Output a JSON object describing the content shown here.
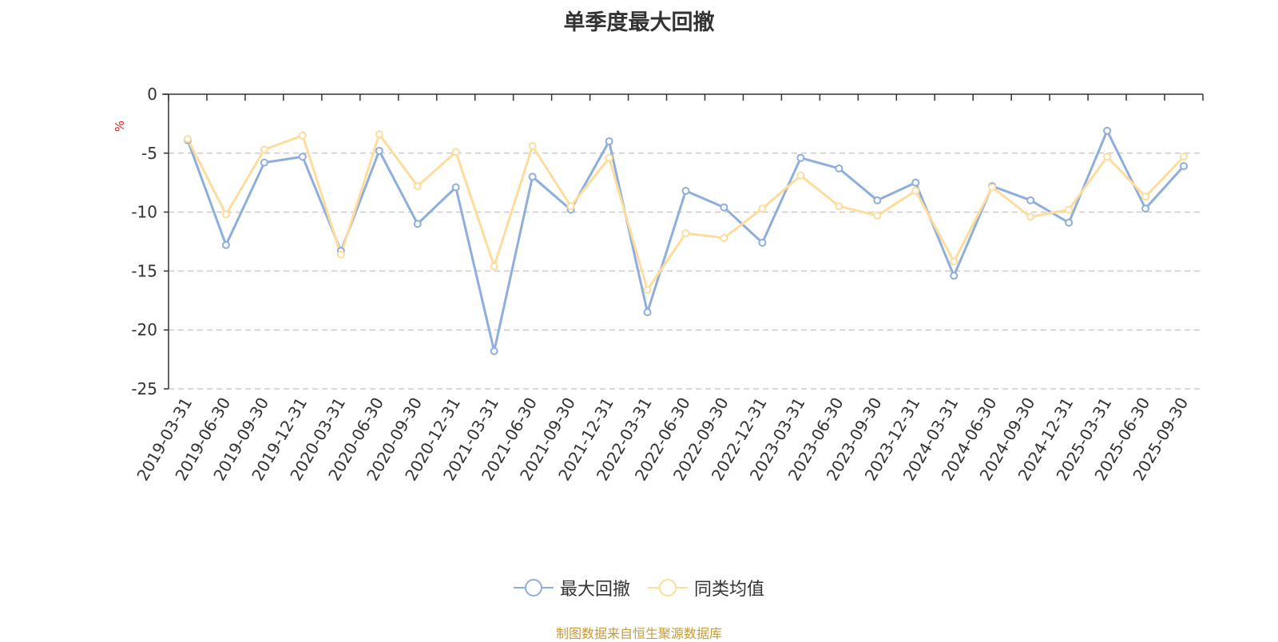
{
  "title": "单季度最大回撤",
  "source": "制图数据来自恒生聚源数据库",
  "colors": {
    "series1": "#8eaedb",
    "series2": "#fddc9c",
    "unit": "#e02020",
    "axis": "#333333",
    "grid": "#cccccc"
  },
  "chart_data": {
    "type": "line",
    "title": "单季度最大回撤",
    "ylabel": "%",
    "ylim": [
      -25,
      0
    ],
    "yticks": [
      0,
      -5,
      -10,
      -15,
      -20,
      -25
    ],
    "grid": "horizontal dashed",
    "legend_position": "bottom",
    "categories": [
      "2019-03-31",
      "2019-06-30",
      "2019-09-30",
      "2019-12-31",
      "2020-03-31",
      "2020-06-30",
      "2020-09-30",
      "2020-12-31",
      "2021-03-31",
      "2021-06-30",
      "2021-09-30",
      "2021-12-31",
      "2022-03-31",
      "2022-06-30",
      "2022-09-30",
      "2022-12-31",
      "2023-03-31",
      "2023-06-30",
      "2023-09-30",
      "2023-12-31",
      "2024-03-31",
      "2024-06-30",
      "2024-09-30",
      "2024-12-31",
      "2025-03-31",
      "2025-06-30",
      "2025-09-30"
    ],
    "series": [
      {
        "name": "最大回撤",
        "values": [
          -3.9,
          -12.8,
          -5.8,
          -5.3,
          -13.3,
          -4.8,
          -11.0,
          -7.9,
          -21.8,
          -7.0,
          -9.8,
          -4.0,
          -18.5,
          -8.2,
          -9.6,
          -12.6,
          -5.4,
          -6.3,
          -9.0,
          -7.5,
          -15.4,
          -7.8,
          -9.0,
          -10.9,
          -3.1,
          -9.7,
          -6.1
        ]
      },
      {
        "name": "同类均值",
        "values": [
          -3.8,
          -10.2,
          -4.7,
          -3.5,
          -13.6,
          -3.4,
          -7.8,
          -4.9,
          -14.6,
          -4.4,
          -9.5,
          -5.4,
          -16.6,
          -11.8,
          -12.2,
          -9.7,
          -6.9,
          -9.5,
          -10.3,
          -8.2,
          -14.2,
          -7.9,
          -10.4,
          -9.8,
          -5.3,
          -8.7,
          -5.3
        ]
      }
    ]
  }
}
